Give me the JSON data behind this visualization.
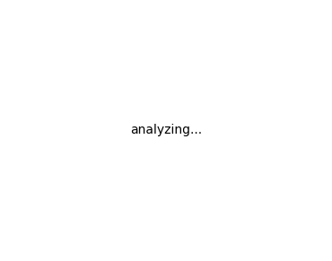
{
  "bgcolor": "#ffffff",
  "lw": 1.5,
  "lw_bold": 2.5,
  "fs_label": 7.5,
  "fs_small": 6.0,
  "color": "#000000"
}
